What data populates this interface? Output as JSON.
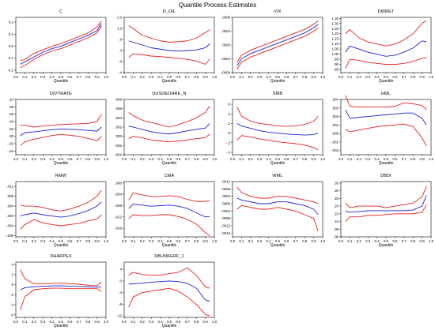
{
  "title": "Quantile Process Estimates",
  "colors": {
    "estimate": "#1f1fdc",
    "bounds": "#e8201c",
    "axis": "#000000"
  },
  "chart_data": [
    {
      "type": "line",
      "title": "C",
      "xlabel": "Quantile",
      "x": [
        0.05,
        0.1,
        0.2,
        0.3,
        0.4,
        0.5,
        0.6,
        0.7,
        0.8,
        0.9,
        0.95
      ],
      "xlim": [
        0,
        1
      ],
      "xticks": [
        "0.0",
        "0.1",
        "0.2",
        "0.3",
        "0.4",
        "0.5",
        "0.6",
        "0.7",
        "0.8",
        "0.9",
        "1.0"
      ],
      "ylim": [
        -0.22,
        0.24
      ],
      "ytick_values": [
        -0.2,
        -0.1,
        0.0,
        0.1,
        0.2
      ],
      "ytick_labels": [
        "-0.2",
        "-0.1",
        "0.0",
        "0.1",
        "0.2"
      ],
      "estimate": [
        -0.15,
        -0.13,
        -0.09,
        -0.05,
        -0.02,
        0.0,
        0.03,
        0.06,
        0.09,
        0.13,
        0.19
      ],
      "upper": [
        -0.12,
        -0.11,
        -0.06,
        -0.03,
        0.0,
        0.02,
        0.05,
        0.08,
        0.11,
        0.16,
        0.21
      ],
      "lower": [
        -0.18,
        -0.16,
        -0.11,
        -0.07,
        -0.04,
        -0.02,
        0.01,
        0.04,
        0.07,
        0.11,
        0.17
      ]
    },
    {
      "type": "line",
      "title": "D_OIL",
      "xlabel": "Quantile",
      "x": [
        0.05,
        0.1,
        0.2,
        0.3,
        0.4,
        0.5,
        0.6,
        0.7,
        0.8,
        0.9,
        0.95
      ],
      "xlim": [
        0,
        1
      ],
      "xticks": [
        "0.0",
        "0.1",
        "0.2",
        "0.3",
        "0.4",
        "0.5",
        "0.6",
        "0.7",
        "0.8",
        "0.9",
        "1.0"
      ],
      "ylim": [
        -0.4,
        1.6
      ],
      "ytick_values": [
        -0.4,
        0.0,
        0.4,
        0.8,
        1.2,
        1.6
      ],
      "ytick_labels": [
        "-.4",
        ".0",
        ".4",
        ".8",
        "1.2",
        "1.6"
      ],
      "estimate": [
        0.75,
        0.7,
        0.6,
        0.5,
        0.45,
        0.4,
        0.38,
        0.4,
        0.42,
        0.5,
        0.65
      ],
      "upper": [
        1.3,
        1.2,
        0.95,
        0.85,
        0.75,
        0.7,
        0.72,
        0.75,
        0.85,
        1.05,
        1.15
      ],
      "lower": [
        0.15,
        0.28,
        0.25,
        0.2,
        0.18,
        0.15,
        0.12,
        0.08,
        0.02,
        -0.1,
        0.1
      ]
    },
    {
      "type": "line",
      "title": "VIX",
      "xlabel": "Quantile",
      "x": [
        0.05,
        0.1,
        0.2,
        0.3,
        0.4,
        0.5,
        0.6,
        0.7,
        0.8,
        0.9,
        0.95
      ],
      "xlim": [
        0,
        1
      ],
      "xticks": [
        "0.0",
        "0.1",
        "0.2",
        "0.3",
        "0.4",
        "0.5",
        "0.6",
        "0.7",
        "0.8",
        "0.9",
        "1.0"
      ],
      "ylim": [
        -0.0008,
        0.0008
      ],
      "ytick_values": [
        -0.0008,
        -0.0004,
        0.0,
        0.0004,
        0.0008
      ],
      "ytick_labels": [
        "-.0008",
        "-.0004",
        ".0000",
        ".0004",
        ".0008"
      ],
      "estimate": [
        -0.0006,
        -0.0004,
        -0.00025,
        -0.00015,
        -5e-05,
        5e-05,
        0.00015,
        0.00025,
        0.00035,
        0.0005,
        0.0006
      ],
      "upper": [
        -0.0005,
        -0.0003,
        -0.00015,
        -5e-05,
        5e-05,
        0.00015,
        0.00025,
        0.00035,
        0.00045,
        0.0006,
        0.0007
      ],
      "lower": [
        -0.0007,
        -0.0005,
        -0.00035,
        -0.00025,
        -0.00015,
        -5e-05,
        5e-05,
        0.00015,
        0.00025,
        0.0004,
        0.0005
      ]
    },
    {
      "type": "line",
      "title": "DWRET",
      "xlabel": "Quantile",
      "x": [
        0.05,
        0.1,
        0.2,
        0.3,
        0.4,
        0.5,
        0.6,
        0.7,
        0.8,
        0.9,
        0.95
      ],
      "xlim": [
        0,
        1
      ],
      "xticks": [
        "0.0",
        "0.1",
        "0.2",
        "0.3",
        "0.4",
        "0.5",
        "0.6",
        "0.7",
        "0.8",
        "0.9",
        "1.0"
      ],
      "ylim": [
        0.82,
        1.36
      ],
      "ytick_values": [
        0.85,
        0.9,
        0.95,
        1.0,
        1.05,
        1.1,
        1.15,
        1.2,
        1.25,
        1.3,
        1.35
      ],
      "ytick_labels": [
        ".85",
        ".90",
        ".95",
        "1.00",
        "1.05",
        "1.10",
        "1.15",
        "1.20",
        "1.25",
        "1.30",
        "1.35"
      ],
      "estimate": [
        1.02,
        1.08,
        1.05,
        1.02,
        1.0,
        0.98,
        0.99,
        1.02,
        1.06,
        1.13,
        1.12
      ],
      "upper": [
        1.2,
        1.24,
        1.16,
        1.12,
        1.1,
        1.08,
        1.1,
        1.14,
        1.2,
        1.3,
        1.33
      ],
      "lower": [
        0.86,
        0.95,
        0.94,
        0.92,
        0.91,
        0.9,
        0.9,
        0.91,
        0.93,
        0.96,
        0.97
      ]
    },
    {
      "type": "line",
      "title": "DIVYRATE",
      "xlabel": "Quantile",
      "x": [
        0.05,
        0.1,
        0.2,
        0.3,
        0.4,
        0.5,
        0.6,
        0.7,
        0.8,
        0.9,
        0.95
      ],
      "xlim": [
        0,
        1
      ],
      "xticks": [
        "0.0",
        "0.1",
        "0.2",
        "0.3",
        "0.4",
        "0.5",
        "0.6",
        "0.7",
        "0.8",
        "0.9",
        "1.0"
      ],
      "ylim": [
        -0.05,
        0.1
      ],
      "ytick_values": [
        -0.04,
        -0.02,
        0.0,
        0.02,
        0.04,
        0.06,
        0.08,
        0.1
      ],
      "ytick_labels": [
        "-.04",
        "-.02",
        ".00",
        ".02",
        ".04",
        ".06",
        ".08",
        ".10"
      ],
      "estimate": [
        0.002,
        0.01,
        0.012,
        0.015,
        0.018,
        0.02,
        0.019,
        0.018,
        0.016,
        0.014,
        0.025
      ],
      "upper": [
        0.03,
        0.03,
        0.025,
        0.028,
        0.03,
        0.032,
        0.033,
        0.034,
        0.035,
        0.04,
        0.06
      ],
      "lower": [
        -0.025,
        -0.015,
        -0.008,
        -0.003,
        0.002,
        0.005,
        0.003,
        0.0,
        -0.006,
        -0.012,
        0.0
      ]
    },
    {
      "type": "line",
      "title": "DUSDEOHRE_N",
      "xlabel": "Quantile",
      "x": [
        0.05,
        0.1,
        0.2,
        0.3,
        0.4,
        0.5,
        0.6,
        0.7,
        0.8,
        0.9,
        0.95
      ],
      "xlim": [
        0,
        1
      ],
      "xticks": [
        "0.0",
        "0.1",
        "0.2",
        "0.3",
        "0.4",
        "0.5",
        "0.6",
        "0.7",
        "0.8",
        "0.9",
        "1.0"
      ],
      "ylim": [
        -0.004,
        0.008
      ],
      "ytick_values": [
        -0.004,
        -0.002,
        0.0,
        0.002,
        0.004,
        0.006,
        0.008
      ],
      "ytick_labels": [
        "-.004",
        "-.002",
        ".000",
        ".002",
        ".004",
        ".006",
        ".008"
      ],
      "estimate": [
        0.0022,
        0.002,
        0.0015,
        0.001,
        0.0007,
        0.0005,
        0.0008,
        0.0012,
        0.0015,
        0.0018,
        0.0028
      ],
      "upper": [
        0.0052,
        0.0045,
        0.0035,
        0.003,
        0.0025,
        0.002,
        0.0025,
        0.0032,
        0.004,
        0.0052,
        0.0066
      ],
      "lower": [
        -0.0005,
        0.0,
        -0.0003,
        -0.0008,
        -0.001,
        -0.0012,
        -0.001,
        -0.0008,
        -0.0005,
        -0.0003,
        0.0005
      ]
    },
    {
      "type": "line",
      "title": "SMB",
      "xlabel": "Quantile",
      "x": [
        0.05,
        0.1,
        0.2,
        0.3,
        0.4,
        0.5,
        0.6,
        0.7,
        0.8,
        0.9,
        0.95
      ],
      "xlim": [
        0,
        1
      ],
      "xticks": [
        "0.0",
        "0.1",
        "0.2",
        "0.3",
        "0.4",
        "0.5",
        "0.6",
        "0.7",
        "0.8",
        "0.9",
        "1.0"
      ],
      "ylim": [
        -0.45,
        0.7
      ],
      "ytick_values": [
        -0.4,
        -0.2,
        0.0,
        0.2,
        0.4,
        0.6
      ],
      "ytick_labels": [
        "-.4",
        "-.2",
        ".0",
        ".2",
        ".4",
        ".6"
      ],
      "estimate": [
        0.2,
        0.15,
        0.1,
        0.05,
        0.02,
        0.0,
        -0.02,
        -0.03,
        -0.04,
        -0.03,
        0.0
      ],
      "upper": [
        0.55,
        0.35,
        0.25,
        0.2,
        0.18,
        0.15,
        0.14,
        0.15,
        0.18,
        0.25,
        0.35
      ],
      "lower": [
        -0.15,
        -0.05,
        -0.08,
        -0.12,
        -0.15,
        -0.18,
        -0.2,
        -0.22,
        -0.25,
        -0.3,
        -0.35
      ]
    },
    {
      "type": "line",
      "title": "HML",
      "xlabel": "Quantile",
      "x": [
        0.05,
        0.1,
        0.2,
        0.3,
        0.4,
        0.5,
        0.6,
        0.7,
        0.8,
        0.9,
        0.95
      ],
      "xlim": [
        0,
        1
      ],
      "xticks": [
        "0.0",
        "0.1",
        "0.2",
        "0.3",
        "0.4",
        "0.5",
        "0.6",
        "0.7",
        "0.8",
        "0.9",
        "1.0"
      ],
      "ylim": [
        -0.0025,
        0.004
      ],
      "ytick_values": [
        -0.002,
        -0.001,
        0.0,
        0.001,
        0.002,
        0.003,
        0.004
      ],
      "ytick_labels": [
        "-.002",
        "-.001",
        ".000",
        ".001",
        ".002",
        ".003",
        ".004"
      ],
      "estimate": [
        0.0028,
        0.0018,
        0.0019,
        0.002,
        0.0021,
        0.0022,
        0.0023,
        0.0024,
        0.0024,
        0.0018,
        0.001
      ],
      "upper": [
        0.0045,
        0.0032,
        0.0031,
        0.0031,
        0.0031,
        0.0031,
        0.0032,
        0.0036,
        0.0035,
        0.0033,
        0.0028
      ],
      "lower": [
        0.0005,
        0.0002,
        0.0004,
        0.0006,
        0.0008,
        0.0009,
        0.001,
        0.0011,
        0.0008,
        -0.0005,
        -0.0015
      ]
    },
    {
      "type": "line",
      "title": "RMW",
      "xlabel": "Quantile",
      "x": [
        0.05,
        0.1,
        0.2,
        0.3,
        0.4,
        0.5,
        0.6,
        0.7,
        0.8,
        0.9,
        0.95
      ],
      "xlim": [
        0,
        1
      ],
      "xticks": [
        "0.0",
        "0.1",
        "0.2",
        "0.3",
        "0.4",
        "0.5",
        "0.6",
        "0.7",
        "0.8",
        "0.9",
        "1.0"
      ],
      "ylim": [
        -0.0085,
        0.014
      ],
      "ytick_values": [
        -0.008,
        -0.004,
        0.0,
        0.004,
        0.008,
        0.012
      ],
      "ytick_labels": [
        "-.008",
        "-.004",
        ".000",
        ".004",
        ".008",
        ".012"
      ],
      "estimate": [
        0.0,
        0.0005,
        0.0012,
        0.0005,
        0.0,
        -0.0005,
        0.0,
        0.001,
        0.0022,
        0.004,
        0.0058
      ],
      "upper": [
        0.0045,
        0.004,
        0.004,
        0.0035,
        0.0025,
        0.002,
        0.0028,
        0.004,
        0.0055,
        0.008,
        0.0105
      ],
      "lower": [
        -0.0055,
        -0.0035,
        -0.0015,
        -0.0028,
        -0.0035,
        -0.004,
        -0.0035,
        -0.003,
        -0.002,
        -0.0012,
        0.0005
      ]
    },
    {
      "type": "line",
      "title": "CMA",
      "xlabel": "Quantile",
      "x": [
        0.05,
        0.1,
        0.2,
        0.3,
        0.4,
        0.5,
        0.6,
        0.7,
        0.8,
        0.9,
        0.95
      ],
      "xlim": [
        0,
        1
      ],
      "xticks": [
        "0.0",
        "0.1",
        "0.2",
        "0.3",
        "0.4",
        "0.5",
        "0.6",
        "0.7",
        "0.8",
        "0.9",
        "1.0"
      ],
      "ylim": [
        -0.019,
        0.0005
      ],
      "ytick_values": [
        -0.016,
        -0.012,
        -0.008,
        -0.004,
        0.0
      ],
      "ytick_labels": [
        "-.016",
        "-.012",
        "-.008",
        "-.004",
        ".000"
      ],
      "estimate": [
        -0.009,
        -0.0075,
        -0.0078,
        -0.0082,
        -0.008,
        -0.0078,
        -0.0082,
        -0.009,
        -0.0105,
        -0.012,
        -0.0118
      ],
      "upper": [
        -0.006,
        -0.0035,
        -0.0042,
        -0.0048,
        -0.0048,
        -0.0045,
        -0.0048,
        -0.0058,
        -0.0065,
        -0.0065,
        -0.0062
      ],
      "lower": [
        -0.0125,
        -0.0112,
        -0.0115,
        -0.0115,
        -0.0112,
        -0.0112,
        -0.0118,
        -0.0128,
        -0.0145,
        -0.0175,
        -0.0185
      ]
    },
    {
      "type": "line",
      "title": "WML",
      "xlabel": "Quantile",
      "x": [
        0.05,
        0.1,
        0.2,
        0.3,
        0.4,
        0.5,
        0.6,
        0.7,
        0.8,
        0.9,
        0.95
      ],
      "xlim": [
        0,
        1
      ],
      "xticks": [
        "0.0",
        "0.1",
        "0.2",
        "0.3",
        "0.4",
        "0.5",
        "0.6",
        "0.7",
        "0.8",
        "0.9",
        "1.0"
      ],
      "ylim": [
        -0.0018,
        0.0012
      ],
      "ytick_values": [
        -0.0016,
        -0.0012,
        -0.0008,
        -0.0004,
        0.0,
        0.0004,
        0.0008,
        0.0012
      ],
      "ytick_labels": [
        "-.0016",
        "-.0012",
        "-.0008",
        "-.0004",
        ".0000",
        ".0004",
        ".0008",
        ".0012"
      ],
      "estimate": [
        0.0003,
        0.0002,
        0.0001,
        0.0,
        0.0,
        0.0001,
        0.0001,
        0.0,
        -0.0001,
        -0.0003,
        -0.0006
      ],
      "upper": [
        0.0009,
        0.0006,
        0.0004,
        0.0003,
        0.0003,
        0.0004,
        0.0004,
        0.0003,
        0.0002,
        0.0001,
        0.0
      ],
      "lower": [
        -0.0003,
        -0.0001,
        -0.0002,
        -0.0003,
        -0.0003,
        -0.0002,
        -0.0003,
        -0.0004,
        -0.0006,
        -0.0008,
        -0.0015
      ]
    },
    {
      "type": "line",
      "title": "DBDI",
      "xlabel": "Quantile",
      "x": [
        0.05,
        0.1,
        0.2,
        0.3,
        0.4,
        0.5,
        0.6,
        0.7,
        0.8,
        0.9,
        0.95
      ],
      "xlim": [
        0,
        1
      ],
      "xticks": [
        "0.0",
        "0.1",
        "0.2",
        "0.3",
        "0.4",
        "0.5",
        "0.6",
        "0.7",
        "0.8",
        "0.9",
        "1.0"
      ],
      "ylim": [
        0.0,
        0.36
      ],
      "ytick_values": [
        0.0,
        0.05,
        0.1,
        0.15,
        0.2,
        0.25,
        0.3,
        0.35
      ],
      "ytick_labels": [
        ".00",
        ".05",
        ".10",
        ".15",
        ".20",
        ".25",
        ".30",
        ".35"
      ],
      "estimate": [
        0.17,
        0.16,
        0.165,
        0.17,
        0.17,
        0.17,
        0.17,
        0.17,
        0.175,
        0.2,
        0.27
      ],
      "upper": [
        0.22,
        0.19,
        0.2,
        0.2,
        0.2,
        0.19,
        0.2,
        0.21,
        0.22,
        0.26,
        0.33
      ],
      "lower": [
        0.1,
        0.13,
        0.13,
        0.14,
        0.14,
        0.145,
        0.15,
        0.15,
        0.15,
        0.16,
        0.21
      ]
    },
    {
      "type": "line",
      "title": "DHARPEX",
      "xlabel": "Quantile",
      "x": [
        0.05,
        0.1,
        0.2,
        0.3,
        0.4,
        0.5,
        0.6,
        0.7,
        0.8,
        0.9,
        0.95
      ],
      "xlim": [
        0,
        1
      ],
      "xticks": [
        "0.0",
        "0.1",
        "0.2",
        "0.3",
        "0.4",
        "0.5",
        "0.6",
        "0.7",
        "0.8",
        "0.9",
        "1.0"
      ],
      "ylim": [
        -6.5,
        4.5
      ],
      "ytick_values": [
        -6,
        -4,
        -2,
        0,
        2,
        4
      ],
      "ytick_labels": [
        "-6",
        "-4",
        "-2",
        "0",
        "2",
        "4"
      ],
      "estimate": [
        -1.0,
        -0.6,
        -0.4,
        -0.3,
        -0.25,
        -0.2,
        -0.3,
        -0.35,
        -0.4,
        -0.5,
        -0.4
      ],
      "upper": [
        3.0,
        1.2,
        0.2,
        0.2,
        0.25,
        0.3,
        0.2,
        0.1,
        -0.1,
        -0.2,
        0.5
      ],
      "lower": [
        -5.0,
        -2.4,
        -1.0,
        -0.8,
        -0.7,
        -0.7,
        -0.8,
        -0.8,
        -0.8,
        -0.8,
        -1.3
      ]
    },
    {
      "type": "line",
      "title": "DBUNKERF_1",
      "xlabel": "Quantile",
      "x": [
        0.05,
        0.1,
        0.2,
        0.3,
        0.4,
        0.5,
        0.6,
        0.7,
        0.8,
        0.9,
        0.95
      ],
      "xlim": [
        0,
        1
      ],
      "xticks": [
        "0.0",
        "0.1",
        "0.2",
        "0.3",
        "0.4",
        "0.5",
        "0.6",
        "0.7",
        "0.8",
        "0.9",
        "1.0"
      ],
      "ylim": [
        -12.5,
        6.5
      ],
      "ytick_values": [
        -12,
        -8,
        -4,
        0,
        4
      ],
      "ytick_labels": [
        "-12",
        "-8",
        "-4",
        "0",
        "4"
      ],
      "estimate": [
        -1.0,
        -1.0,
        -0.7,
        -0.4,
        -0.2,
        0.0,
        -0.2,
        -0.8,
        -2.5,
        -6.5,
        -7.0
      ],
      "upper": [
        2.0,
        3.0,
        2.2,
        2.0,
        2.0,
        2.5,
        3.0,
        4.5,
        2.0,
        -2.0,
        -2.5
      ],
      "lower": [
        -9.0,
        -5.5,
        -4.0,
        -3.5,
        -3.0,
        -2.5,
        -3.5,
        -5.5,
        -8.0,
        -11.5,
        -12.0
      ]
    }
  ]
}
